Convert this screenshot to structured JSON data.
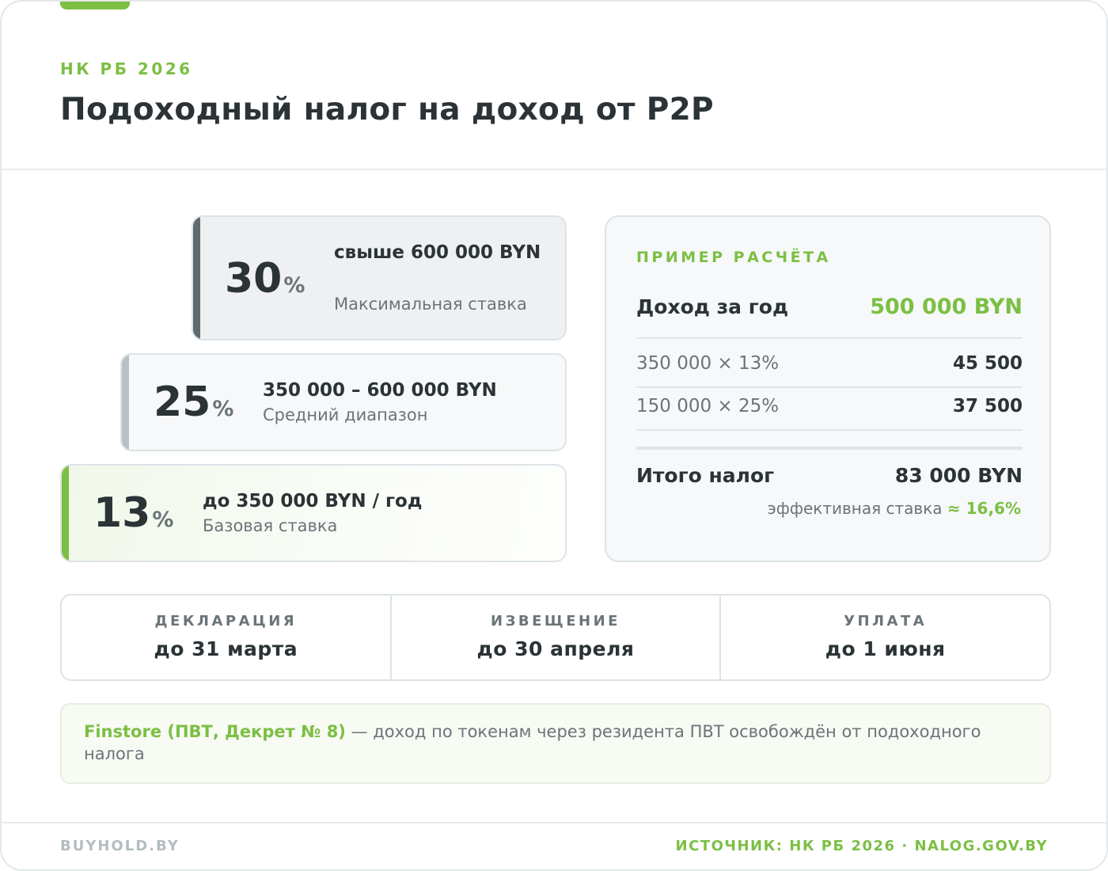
{
  "header": {
    "eyebrow": "НК РБ 2026",
    "title": "Подоходный налог на доход от P2P"
  },
  "tiers": [
    {
      "rate": "30",
      "sign": "%",
      "range": "свыше 600 000 BYN",
      "desc": "Максимальная ставка"
    },
    {
      "rate": "25",
      "sign": "%",
      "range": "350 000 – 600 000 BYN",
      "desc": "Средний диапазон"
    },
    {
      "rate": "13",
      "sign": "%",
      "range": "до 350 000 BYN / год",
      "desc": "Базовая ставка"
    }
  ],
  "example": {
    "title": "ПРИМЕР РАСЧЁТА",
    "income_label": "Доход за год",
    "income_value": "500 000 BYN",
    "rows": [
      {
        "label": "350 000 × 13%",
        "value": "45 500"
      },
      {
        "label": "150 000 × 25%",
        "value": "37 500"
      }
    ],
    "total_label": "Итого налог",
    "total_value": "83 000 BYN",
    "effective_label": "эффективная ставка",
    "effective_value": "≈ 16,6%"
  },
  "deadlines": [
    {
      "label": "ДЕКЛАРАЦИЯ",
      "value": "до 31 марта"
    },
    {
      "label": "ИЗВЕЩЕНИЕ",
      "value": "до 30 апреля"
    },
    {
      "label": "УПЛАТА",
      "value": "до 1 июня"
    }
  ],
  "note": {
    "strong": "Finstore (ПВТ, Декрет № 8)",
    "text": " — доход по токенам через резидента ПВТ освобождён от подоходного налога"
  },
  "footer": {
    "brand": "BUYHOLD.BY",
    "source": "ИСТОЧНИК: НК РБ 2026 · NALOG.GOV.BY"
  },
  "colors": {
    "accent": "#7bbf43",
    "text": "#2b3336",
    "muted": "#6b7478",
    "tier_30_bar": "#5f6b70",
    "tier_25_bar": "#b7c1c6"
  }
}
